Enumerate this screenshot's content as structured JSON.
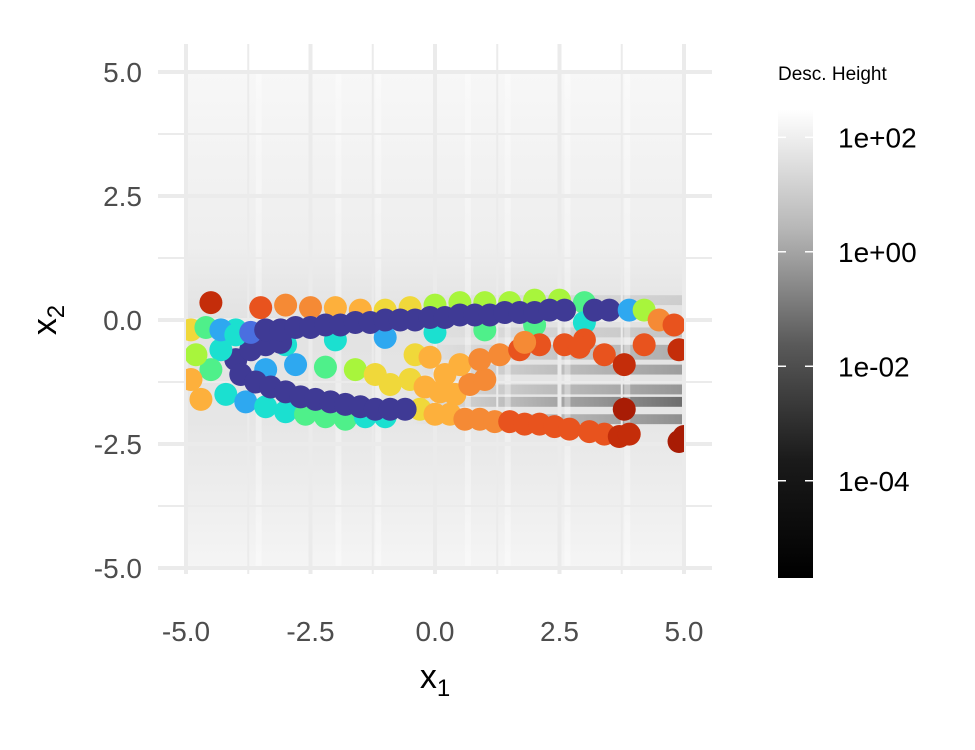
{
  "chart_data": {
    "type": "scatter",
    "x_axis": {
      "title": "x",
      "title_subscript": "1",
      "range": [
        -5.0,
        5.0
      ],
      "ticks": [
        -5.0,
        -2.5,
        0.0,
        2.5,
        5.0
      ],
      "tick_labels": [
        "-5.0",
        "-2.5",
        "0.0",
        "2.5",
        "5.0"
      ]
    },
    "y_axis": {
      "title": "x",
      "title_subscript": "2",
      "range": [
        -5.0,
        5.0
      ],
      "ticks": [
        -5.0,
        -2.5,
        0.0,
        2.5,
        5.0
      ],
      "tick_labels": [
        "-5.0",
        "-2.5",
        "0.0",
        "2.5",
        "5.0"
      ]
    },
    "grid": true,
    "background": "grayscale descendant-height field",
    "colorbar": {
      "title": "Desc. Height",
      "scale": "log",
      "range": [
        2e-06,
        300
      ],
      "ticks": [
        0.0001,
        0.01,
        1,
        100
      ],
      "tick_labels": [
        "1e-04",
        "1e-02",
        "1e+00",
        "1e+02"
      ],
      "colors": [
        "#000000",
        "#ffffff"
      ],
      "placement": "right"
    },
    "point_palette": [
      "#3f3a95",
      "#4a6fe0",
      "#2ea8f0",
      "#1be0d0",
      "#4ff08a",
      "#a8f53c",
      "#f0d83a",
      "#fdb03c",
      "#f58a35",
      "#e8531e",
      "#c42d0a",
      "#a81c05"
    ],
    "series": [
      {
        "segment": "upper-arm",
        "points": [
          {
            "x": -4.9,
            "y": -0.2,
            "v": 6
          },
          {
            "x": -4.6,
            "y": -0.15,
            "v": 4
          },
          {
            "x": -4.3,
            "y": -0.2,
            "v": 2
          },
          {
            "x": -4.0,
            "y": -0.3,
            "v": 3
          },
          {
            "x": -3.7,
            "y": -0.25,
            "v": 1
          },
          {
            "x": -3.4,
            "y": -0.2,
            "v": 0
          },
          {
            "x": -3.1,
            "y": -0.2,
            "v": 0
          },
          {
            "x": -2.8,
            "y": -0.15,
            "v": 0
          },
          {
            "x": -2.5,
            "y": -0.15,
            "v": 0
          },
          {
            "x": -2.2,
            "y": -0.1,
            "v": 0
          },
          {
            "x": -1.9,
            "y": -0.1,
            "v": 0
          },
          {
            "x": -1.6,
            "y": -0.05,
            "v": 0
          },
          {
            "x": -1.3,
            "y": -0.05,
            "v": 0
          },
          {
            "x": -1.0,
            "y": 0.0,
            "v": 0
          },
          {
            "x": -0.7,
            "y": 0.0,
            "v": 0
          },
          {
            "x": -0.4,
            "y": 0.0,
            "v": 0
          },
          {
            "x": -0.1,
            "y": 0.05,
            "v": 0
          },
          {
            "x": 0.2,
            "y": 0.05,
            "v": 0
          },
          {
            "x": 0.5,
            "y": 0.1,
            "v": 0
          },
          {
            "x": 0.8,
            "y": 0.1,
            "v": 0
          },
          {
            "x": 1.1,
            "y": 0.1,
            "v": 0
          },
          {
            "x": 1.4,
            "y": 0.15,
            "v": 0
          },
          {
            "x": 1.7,
            "y": 0.15,
            "v": 0
          },
          {
            "x": 2.0,
            "y": 0.15,
            "v": 0
          },
          {
            "x": 2.3,
            "y": 0.2,
            "v": 0
          },
          {
            "x": 2.6,
            "y": 0.2,
            "v": 0
          },
          {
            "x": 3.2,
            "y": 0.2,
            "v": 0
          },
          {
            "x": 3.5,
            "y": 0.2,
            "v": 0
          },
          {
            "x": 3.9,
            "y": 0.2,
            "v": 2
          },
          {
            "x": 4.2,
            "y": 0.2,
            "v": 5
          },
          {
            "x": 4.5,
            "y": 0.0,
            "v": 8
          },
          {
            "x": 4.8,
            "y": -0.1,
            "v": 9
          },
          {
            "x": 4.9,
            "y": -0.6,
            "v": 10
          }
        ]
      },
      {
        "segment": "upper-arm-halo",
        "points": [
          {
            "x": -3.5,
            "y": 0.25,
            "v": 9
          },
          {
            "x": -3.0,
            "y": 0.3,
            "v": 8
          },
          {
            "x": -2.5,
            "y": 0.25,
            "v": 8
          },
          {
            "x": -2.0,
            "y": 0.25,
            "v": 7
          },
          {
            "x": -1.5,
            "y": 0.2,
            "v": 7
          },
          {
            "x": -1.0,
            "y": 0.2,
            "v": 6
          },
          {
            "x": -0.5,
            "y": 0.25,
            "v": 6
          },
          {
            "x": 0.0,
            "y": 0.3,
            "v": 5
          },
          {
            "x": 0.5,
            "y": 0.35,
            "v": 5
          },
          {
            "x": 1.0,
            "y": 0.35,
            "v": 5
          },
          {
            "x": 1.5,
            "y": 0.35,
            "v": 5
          },
          {
            "x": 2.0,
            "y": 0.4,
            "v": 5
          },
          {
            "x": 2.5,
            "y": 0.4,
            "v": 5
          },
          {
            "x": 3.0,
            "y": 0.35,
            "v": 4
          },
          {
            "x": -4.5,
            "y": 0.35,
            "v": 10
          },
          {
            "x": -3.0,
            "y": -0.5,
            "v": 3
          },
          {
            "x": -2.0,
            "y": -0.4,
            "v": 3
          },
          {
            "x": -1.0,
            "y": -0.35,
            "v": 2
          },
          {
            "x": 0.0,
            "y": -0.25,
            "v": 3
          },
          {
            "x": 1.0,
            "y": -0.2,
            "v": 4
          },
          {
            "x": 2.0,
            "y": -0.1,
            "v": 4
          },
          {
            "x": 3.0,
            "y": -0.05,
            "v": 3
          }
        ]
      },
      {
        "segment": "inner-branch",
        "points": [
          {
            "x": -4.0,
            "y": -0.8,
            "v": 0
          },
          {
            "x": -3.7,
            "y": -0.6,
            "v": 0
          },
          {
            "x": -3.4,
            "y": -0.5,
            "v": 0
          },
          {
            "x": -3.1,
            "y": -0.45,
            "v": 0
          },
          {
            "x": -3.9,
            "y": -1.1,
            "v": 0
          },
          {
            "x": -3.6,
            "y": -1.25,
            "v": 0
          },
          {
            "x": -3.3,
            "y": -1.35,
            "v": 0
          },
          {
            "x": -3.0,
            "y": -1.45,
            "v": 0
          },
          {
            "x": -2.7,
            "y": -1.55,
            "v": 0
          },
          {
            "x": -2.4,
            "y": -1.6,
            "v": 0
          },
          {
            "x": -2.1,
            "y": -1.65,
            "v": 0
          },
          {
            "x": -1.8,
            "y": -1.7,
            "v": 0
          },
          {
            "x": -1.5,
            "y": -1.75,
            "v": 0
          },
          {
            "x": -1.2,
            "y": -1.8,
            "v": 0
          },
          {
            "x": -0.9,
            "y": -1.8,
            "v": 0
          },
          {
            "x": -0.6,
            "y": -1.8,
            "v": 0
          },
          {
            "x": -4.3,
            "y": -0.6,
            "v": 3
          },
          {
            "x": -4.5,
            "y": -1.0,
            "v": 4
          },
          {
            "x": -4.8,
            "y": -0.7,
            "v": 5
          },
          {
            "x": -4.9,
            "y": -1.2,
            "v": 7
          },
          {
            "x": -4.7,
            "y": -1.6,
            "v": 7
          }
        ]
      },
      {
        "segment": "lower-halo",
        "points": [
          {
            "x": -4.2,
            "y": -1.5,
            "v": 3
          },
          {
            "x": -3.8,
            "y": -1.65,
            "v": 2
          },
          {
            "x": -3.4,
            "y": -1.75,
            "v": 3
          },
          {
            "x": -3.0,
            "y": -1.85,
            "v": 3
          },
          {
            "x": -2.6,
            "y": -1.9,
            "v": 4
          },
          {
            "x": -2.2,
            "y": -1.95,
            "v": 4
          },
          {
            "x": -1.8,
            "y": -2.0,
            "v": 4
          },
          {
            "x": -1.4,
            "y": -1.95,
            "v": 3
          },
          {
            "x": -1.0,
            "y": -1.95,
            "v": 3
          },
          {
            "x": -4.0,
            "y": -0.2,
            "v": 3
          },
          {
            "x": -3.4,
            "y": -1.0,
            "v": 2
          },
          {
            "x": -2.8,
            "y": -0.9,
            "v": 2
          },
          {
            "x": -2.2,
            "y": -0.95,
            "v": 4
          },
          {
            "x": -1.6,
            "y": -1.0,
            "v": 5
          },
          {
            "x": -1.2,
            "y": -1.1,
            "v": 6
          },
          {
            "x": -0.9,
            "y": -1.3,
            "v": 6
          }
        ]
      },
      {
        "segment": "lower-arm",
        "points": [
          {
            "x": -0.5,
            "y": -1.2,
            "v": 6
          },
          {
            "x": -0.2,
            "y": -1.35,
            "v": 7
          },
          {
            "x": 0.1,
            "y": -1.45,
            "v": 7
          },
          {
            "x": -0.3,
            "y": -1.8,
            "v": 6
          },
          {
            "x": 0.0,
            "y": -1.9,
            "v": 7
          },
          {
            "x": 0.3,
            "y": -1.9,
            "v": 7
          },
          {
            "x": 0.6,
            "y": -2.0,
            "v": 8
          },
          {
            "x": 0.9,
            "y": -2.0,
            "v": 8
          },
          {
            "x": 1.2,
            "y": -2.05,
            "v": 8
          },
          {
            "x": 1.5,
            "y": -2.05,
            "v": 9
          },
          {
            "x": 1.8,
            "y": -2.1,
            "v": 9
          },
          {
            "x": 2.1,
            "y": -2.1,
            "v": 9
          },
          {
            "x": 2.4,
            "y": -2.15,
            "v": 9
          },
          {
            "x": 2.7,
            "y": -2.2,
            "v": 9
          },
          {
            "x": 3.1,
            "y": -2.25,
            "v": 9
          },
          {
            "x": 3.4,
            "y": -2.3,
            "v": 9
          },
          {
            "x": 3.7,
            "y": -2.35,
            "v": 10
          },
          {
            "x": 3.9,
            "y": -2.3,
            "v": 10
          },
          {
            "x": 3.8,
            "y": -1.8,
            "v": 11
          },
          {
            "x": 4.9,
            "y": -2.45,
            "v": 11
          },
          {
            "x": 5.0,
            "y": -2.35,
            "v": 11
          },
          {
            "x": 0.4,
            "y": -1.5,
            "v": 7
          },
          {
            "x": 0.7,
            "y": -1.3,
            "v": 8
          },
          {
            "x": 1.0,
            "y": -1.2,
            "v": 8
          },
          {
            "x": 0.2,
            "y": -1.1,
            "v": 7
          },
          {
            "x": 0.5,
            "y": -0.9,
            "v": 7
          },
          {
            "x": 0.9,
            "y": -0.8,
            "v": 8
          },
          {
            "x": 1.3,
            "y": -0.7,
            "v": 8
          },
          {
            "x": 1.7,
            "y": -0.6,
            "v": 9
          },
          {
            "x": 2.1,
            "y": -0.5,
            "v": 9
          },
          {
            "x": 2.6,
            "y": -0.5,
            "v": 9
          },
          {
            "x": 3.0,
            "y": -0.4,
            "v": 9
          },
          {
            "x": 3.4,
            "y": -0.7,
            "v": 9
          },
          {
            "x": 3.8,
            "y": -0.9,
            "v": 10
          },
          {
            "x": 4.2,
            "y": -0.5,
            "v": 9
          },
          {
            "x": -0.4,
            "y": -0.7,
            "v": 6
          },
          {
            "x": -0.1,
            "y": -0.75,
            "v": 7
          },
          {
            "x": 1.8,
            "y": -0.45,
            "v": 8
          },
          {
            "x": 2.9,
            "y": -0.55,
            "v": 9
          }
        ]
      }
    ]
  }
}
